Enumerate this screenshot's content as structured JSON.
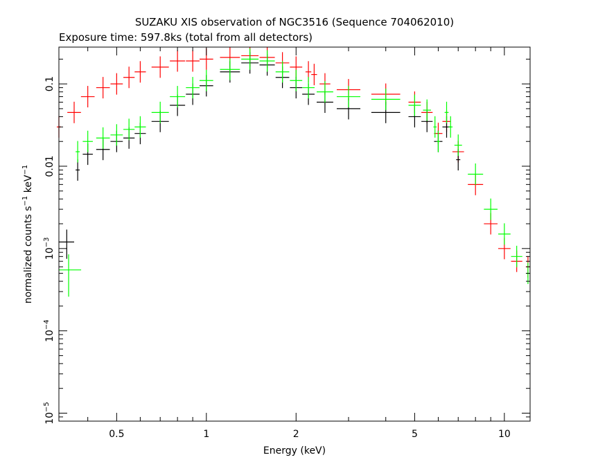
{
  "chart_data": {
    "type": "scatter",
    "title": "SUZAKU XIS observation of NGC3516 (Sequence 704062010)",
    "subtitle": "Exposure time: 597.8ks (total from all detectors)",
    "xlabel": "Energy (keV)",
    "ylabel": {
      "base": "normalized counts s",
      "sup1": "−1",
      "mid": " keV",
      "sup2": "−1"
    },
    "x_scale": "log",
    "y_scale": "log",
    "xlim": [
      0.32,
      12.2
    ],
    "ylim": [
      8e-06,
      0.28
    ],
    "x_tick_labels": [
      {
        "value": 0.5,
        "label": "0.5"
      },
      {
        "value": 1,
        "label": "1"
      },
      {
        "value": 2,
        "label": "2"
      },
      {
        "value": 5,
        "label": "5"
      },
      {
        "value": 10,
        "label": "10"
      }
    ],
    "y_tick_labels": [
      {
        "value": 0.1,
        "label": "0.1"
      },
      {
        "value": 0.01,
        "label": "0.01"
      },
      {
        "value": 0.001,
        "base": "10",
        "exp": "−3"
      },
      {
        "value": 0.0001,
        "base": "10",
        "exp": "−4"
      },
      {
        "value": 1e-05,
        "base": "10",
        "exp": "−5"
      }
    ],
    "grid": false,
    "series": [
      {
        "color": "#ff0000",
        "x": [
          0.32,
          0.36,
          0.4,
          0.45,
          0.5,
          0.55,
          0.6,
          0.7,
          0.8,
          0.9,
          1.0,
          1.2,
          1.4,
          1.6,
          1.8,
          2.0,
          2.2,
          2.3,
          2.5,
          3.0,
          4.0,
          5.0,
          5.5,
          6.0,
          6.4,
          7.0,
          8.0,
          9.0,
          10.0,
          11.0,
          12.0
        ],
        "y": [
          0.03,
          0.045,
          0.07,
          0.09,
          0.1,
          0.12,
          0.14,
          0.16,
          0.19,
          0.19,
          0.2,
          0.21,
          0.22,
          0.21,
          0.18,
          0.16,
          0.14,
          0.13,
          0.1,
          0.085,
          0.075,
          0.06,
          0.045,
          0.025,
          0.035,
          0.015,
          0.006,
          0.002,
          0.001,
          0.0007,
          0.0006
        ]
      },
      {
        "color": "#000000",
        "x": [
          0.37,
          0.4,
          0.45,
          0.5,
          0.55,
          0.6,
          0.7,
          0.8,
          0.9,
          1.0,
          1.2,
          1.4,
          1.6,
          1.8,
          2.0,
          2.2,
          2.5,
          3.0,
          4.0,
          5.0,
          5.5,
          6.0,
          6.4,
          7.0
        ],
        "y": [
          0.009,
          0.014,
          0.016,
          0.02,
          0.022,
          0.025,
          0.035,
          0.055,
          0.075,
          0.095,
          0.14,
          0.18,
          0.17,
          0.12,
          0.09,
          0.075,
          0.06,
          0.05,
          0.045,
          0.04,
          0.035,
          0.02,
          0.03,
          0.012
        ]
      },
      {
        "color": "#00ff00",
        "x": [
          0.37,
          0.4,
          0.45,
          0.5,
          0.55,
          0.6,
          0.7,
          0.8,
          0.9,
          1.0,
          1.2,
          1.4,
          1.6,
          1.8,
          2.0,
          2.2,
          2.5,
          3.0,
          4.0,
          5.0,
          5.5,
          5.85,
          6.0,
          6.4,
          6.6,
          7.0,
          8.0,
          9.0,
          10.0,
          11.0,
          12.0
        ],
        "y": [
          0.015,
          0.02,
          0.022,
          0.024,
          0.028,
          0.03,
          0.045,
          0.07,
          0.09,
          0.11,
          0.15,
          0.2,
          0.19,
          0.14,
          0.11,
          0.09,
          0.08,
          0.07,
          0.065,
          0.055,
          0.048,
          0.03,
          0.02,
          0.045,
          0.03,
          0.018,
          0.008,
          0.003,
          0.0015,
          0.0008,
          0.0005
        ]
      }
    ],
    "annotations": {
      "black_cross": {
        "x": 0.34,
        "y": 0.0012,
        "x_err": [
          0.32,
          0.36
        ],
        "y_err": [
          0.00075,
          0.0017
        ]
      },
      "green_cross": {
        "x": 0.345,
        "y": 0.00055,
        "x_err": [
          0.32,
          0.38
        ],
        "y_err": [
          0.00026,
          0.00085
        ]
      }
    }
  },
  "colors": {
    "frame": "#000000",
    "red": "#ff0000",
    "black": "#000000",
    "green": "#00ff00"
  }
}
